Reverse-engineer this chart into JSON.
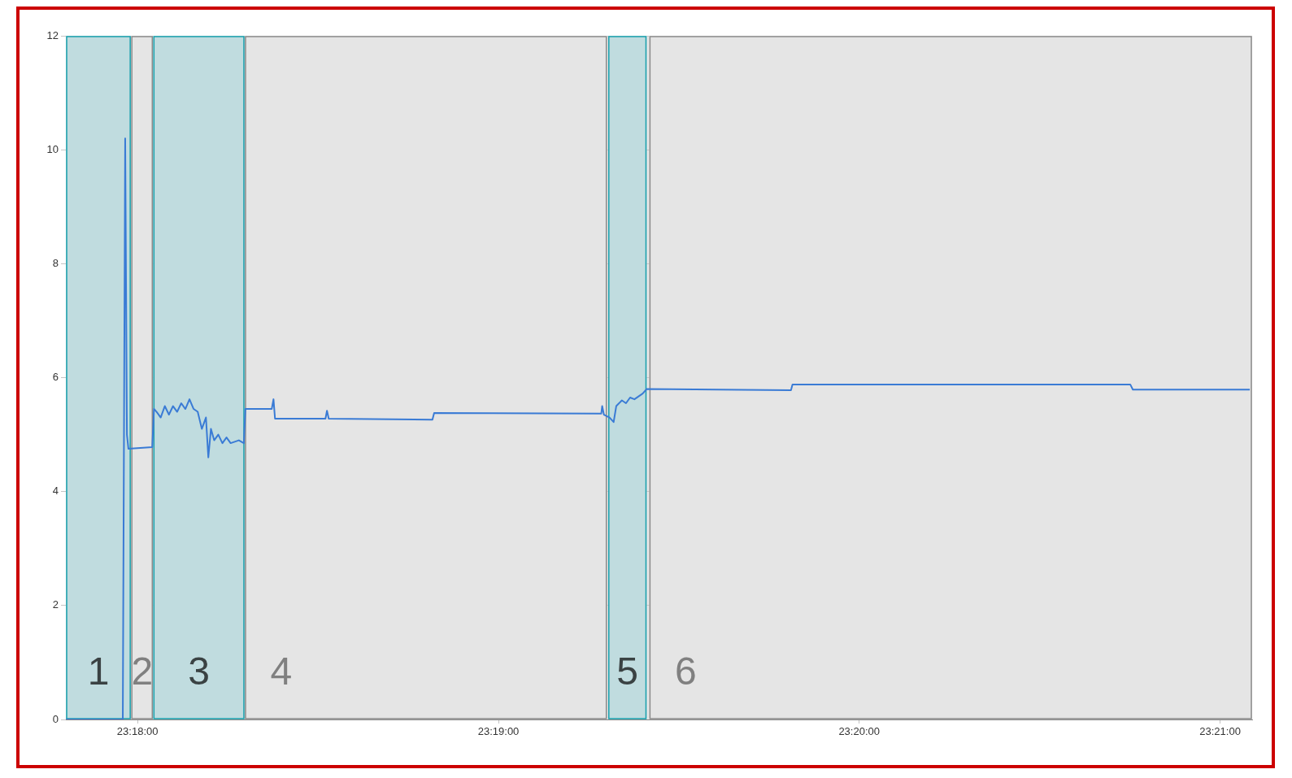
{
  "chart_data": {
    "type": "line",
    "x": [
      23.29669,
      23.29932,
      23.29943,
      23.29951,
      23.29958,
      23.30068,
      23.30076,
      23.30088,
      23.30107,
      23.30126,
      23.30145,
      23.30164,
      23.30183,
      23.30202,
      23.30221,
      23.3024,
      23.30259,
      23.30278,
      23.30297,
      23.30316,
      23.30327,
      23.30339,
      23.30354,
      23.30373,
      23.30392,
      23.30411,
      23.3043,
      23.30468,
      23.30491,
      23.30498,
      23.3062,
      23.30628,
      23.30635,
      23.30868,
      23.30875,
      23.30883,
      23.31362,
      23.3137,
      23.32142,
      23.32146,
      23.32154,
      23.3218,
      23.32199,
      23.32211,
      23.32237,
      23.32256,
      23.32275,
      23.32295,
      23.32333,
      23.32352,
      23.33018,
      23.33025,
      23.34585,
      23.34597,
      23.35137
    ],
    "series": [
      {
        "color": "#3a7bd5",
        "values": [
          0,
          0,
          10.2,
          5.0,
          4.75,
          4.78,
          5.45,
          5.4,
          5.3,
          5.5,
          5.35,
          5.5,
          5.4,
          5.55,
          5.45,
          5.62,
          5.45,
          5.4,
          5.1,
          5.3,
          4.6,
          5.1,
          4.9,
          5.0,
          4.85,
          4.95,
          4.85,
          4.9,
          4.85,
          5.45,
          5.45,
          5.62,
          5.28,
          5.28,
          5.42,
          5.28,
          5.26,
          5.38,
          5.37,
          5.5,
          5.35,
          5.3,
          5.22,
          5.5,
          5.6,
          5.55,
          5.65,
          5.62,
          5.72,
          5.8,
          5.78,
          5.88,
          5.88,
          5.79,
          5.79
        ]
      }
    ],
    "xlim": [
      23.29669,
      23.35148
    ],
    "xticks": [
      {
        "value": 23.3,
        "label": "23:18:00"
      },
      {
        "value": 23.31667,
        "label": "23:19:00"
      },
      {
        "value": 23.33333,
        "label": "23:20:00"
      },
      {
        "value": 23.35,
        "label": "23:21:00"
      }
    ],
    "ylim": [
      0,
      12
    ],
    "yticks": [
      0,
      2,
      4,
      6,
      8,
      10,
      12
    ],
    "grid": true,
    "legend": false,
    "marker": "none",
    "line_style": "solid",
    "bands": [
      {
        "axis": "x",
        "from": 23.29669,
        "to": 23.2997,
        "color": "#c0dcdf",
        "label": "1"
      },
      {
        "axis": "x",
        "from": 23.2997,
        "to": 23.30072,
        "color": "#e5e5e5",
        "label": "2"
      },
      {
        "axis": "x",
        "from": 23.30072,
        "to": 23.30495,
        "color": "#c0dcdf",
        "label": "3"
      },
      {
        "axis": "x",
        "from": 23.30495,
        "to": 23.32169,
        "color": "#e5e5e5",
        "label": "4"
      },
      {
        "axis": "x",
        "from": 23.32173,
        "to": 23.32352,
        "color": "#c0dcdf",
        "label": "5"
      },
      {
        "axis": "x",
        "from": 23.32363,
        "to": 23.35148,
        "color": "#e5e5e5",
        "label": "6"
      }
    ]
  }
}
